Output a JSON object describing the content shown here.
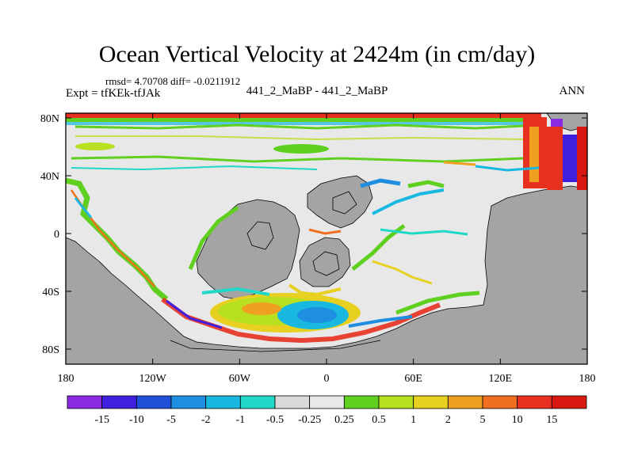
{
  "title": "Ocean Vertical Velocity at 2424m (in cm/day)",
  "stats_line": "rmsd= 4.70708 diff= -0.0211912",
  "expt_label": "Expt = tfKEk-tfJAk",
  "experiment_names": "441_2_MaBP - 441_2_MaBP",
  "season": "ANN",
  "chart_data": {
    "type": "map",
    "variable": "Ocean Vertical Velocity at 2424m",
    "units": "cm/day",
    "x_ticks": [
      "180",
      "120W",
      "60W",
      "0",
      "60E",
      "120E",
      "180"
    ],
    "y_ticks": [
      "80N",
      "40N",
      "0",
      "40S",
      "80S"
    ],
    "colorbar": {
      "labels": [
        "-15",
        "-10",
        "-5",
        "-2",
        "-1",
        "-0.5",
        "-0.25",
        "0.25",
        "0.5",
        "1",
        "2",
        "5",
        "10",
        "15"
      ],
      "colors": [
        "#8a2be2",
        "#4020e0",
        "#2050d8",
        "#1e8fe0",
        "#18b8e0",
        "#20d8c8",
        "#d9d9d9",
        "#e8e8e8",
        "#60d020",
        "#b8e020",
        "#e8d020",
        "#f0a020",
        "#f07020",
        "#e83020",
        "#d81810"
      ]
    }
  }
}
